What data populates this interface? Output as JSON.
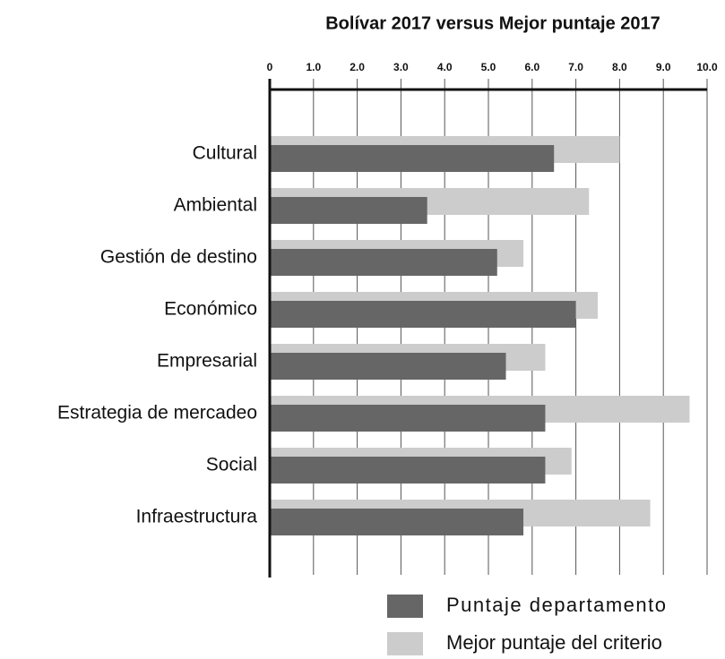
{
  "chart_data": {
    "type": "bar",
    "orientation": "horizontal",
    "title": "Bolívar 2017 versus Mejor puntaje 2017",
    "categories": [
      "Cultural",
      "Ambiental",
      "Gestión de destino",
      "Económico",
      "Empresarial",
      "Estrategia de mercadeo",
      "Social",
      "Infraestructura"
    ],
    "series": [
      {
        "name": "Puntaje departamento",
        "color": "#666666",
        "values": [
          6.5,
          3.6,
          5.2,
          7.0,
          5.4,
          6.3,
          6.3,
          5.8
        ]
      },
      {
        "name": "Mejor puntaje del criterio",
        "color": "#cccccc",
        "values": [
          8.0,
          7.3,
          5.8,
          7.5,
          6.3,
          9.6,
          6.9,
          8.7
        ]
      }
    ],
    "xlim": [
      0,
      10
    ],
    "xticks": [
      0,
      {
        "value": 1,
        "label": "1.0"
      },
      {
        "value": 2,
        "label": "2.0"
      },
      {
        "value": 3,
        "label": "3.0"
      },
      {
        "value": 4,
        "label": "4.0"
      },
      {
        "value": 5,
        "label": "5.0"
      },
      {
        "value": 6,
        "label": "6.0"
      },
      {
        "value": 7,
        "label": "7.0"
      },
      {
        "value": 8,
        "label": "8.0"
      },
      {
        "value": 9,
        "label": "9.0"
      },
      {
        "value": 10,
        "label": "10.0"
      }
    ],
    "grid": true,
    "legend": "bottom-right"
  }
}
